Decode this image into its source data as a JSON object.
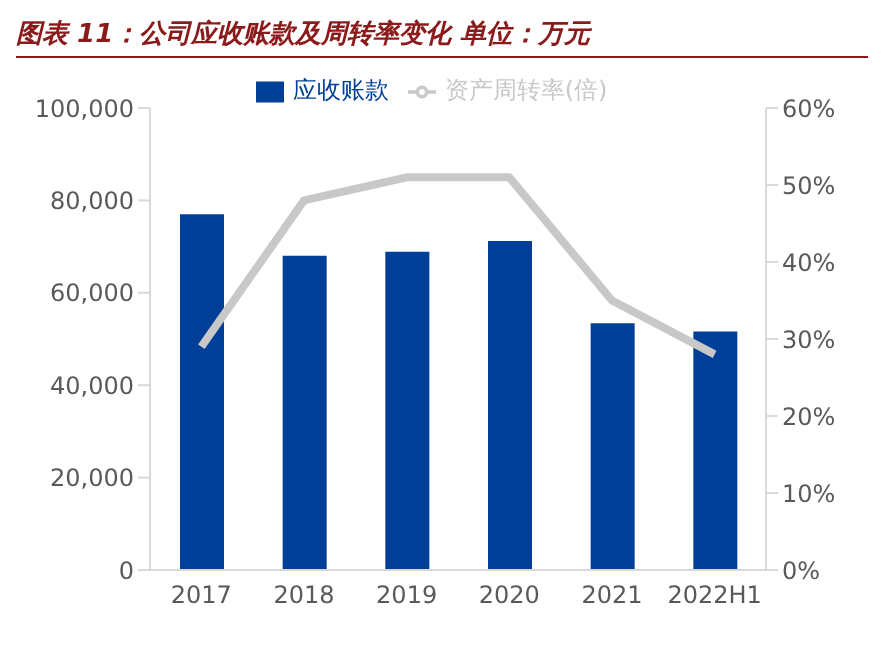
{
  "chart_data": {
    "type": "bar",
    "title": "图表 11：公司应收账款及周转率变化 单位：万元",
    "categories": [
      "2017",
      "2018",
      "2019",
      "2020",
      "2021",
      "2022H1"
    ],
    "series": [
      {
        "name": "应收账款",
        "color": "#003f98",
        "values": [
          77000,
          68000,
          68900,
          71200,
          53400,
          51600
        ]
      },
      {
        "name": "资产周转率(倍)",
        "type": "line",
        "axis": "y2",
        "color": "#c8c8c8",
        "values": [
          29,
          48,
          51,
          51,
          35,
          28
        ]
      }
    ],
    "ylim": [
      0,
      100000
    ],
    "yticks": [
      {
        "value": 0,
        "label": "0"
      },
      {
        "value": 20000,
        "label": "20,000"
      },
      {
        "value": 40000,
        "label": "40,000"
      },
      {
        "value": 60000,
        "label": "60,000"
      },
      {
        "value": 80000,
        "label": "80,000"
      },
      {
        "value": 100000,
        "label": "100,000"
      }
    ],
    "y2lim": [
      0,
      60
    ],
    "y2ticks": [
      {
        "value": 0,
        "label": "0%"
      },
      {
        "value": 10,
        "label": "10%"
      },
      {
        "value": 20,
        "label": "20%"
      },
      {
        "value": 30,
        "label": "30%"
      },
      {
        "value": 40,
        "label": "40%"
      },
      {
        "value": 50,
        "label": "50%"
      },
      {
        "value": 60,
        "label": "60%"
      }
    ],
    "grid": false,
    "legend": "top",
    "marker": "none"
  }
}
